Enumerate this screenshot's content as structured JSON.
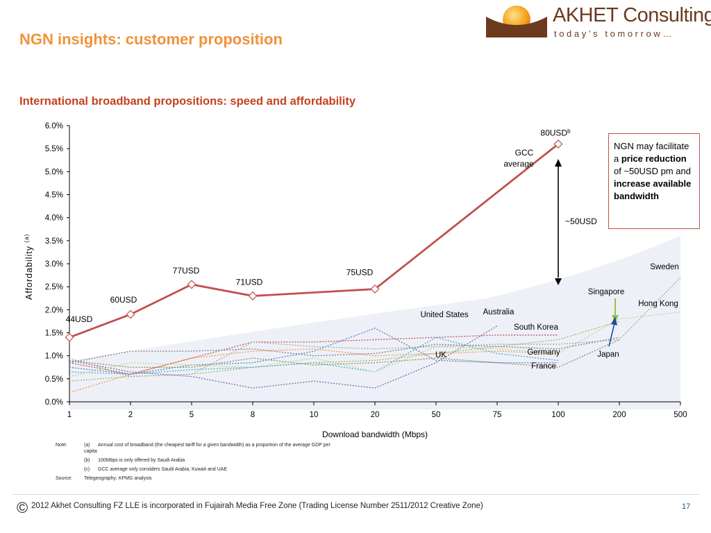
{
  "header": {
    "slide_title": "NGN insights: customer proposition",
    "chart_title": "International broadband propositions: speed and affordability",
    "logo_name": "AKHET Consulting",
    "logo_tagline": "today’s tomorrow…",
    "logo_icon": "sun-over-horizon-icon"
  },
  "colors": {
    "title_orange": "#f0923a",
    "subtitle_red": "#c4421e",
    "gcc_line": "#c0504d",
    "band": "#eef0f8",
    "accent_green": "#8ec641",
    "accent_blue": "#1f4e9a"
  },
  "chart_data": {
    "type": "line",
    "xlabel": "Download bandwidth (Mbps)",
    "ylabel": "Affordability",
    "ylabel_sup": "(a)",
    "categories": [
      "1",
      "2",
      "5",
      "8",
      "10",
      "20",
      "50",
      "75",
      "100",
      "200",
      "500"
    ],
    "ylim": [
      0,
      0.06
    ],
    "yticks": [
      "0.0%",
      "0.5%",
      "1.0%",
      "1.5%",
      "2.0%",
      "2.5%",
      "3.0%",
      "3.5%",
      "4.0%",
      "4.5%",
      "5.0%",
      "5.5%",
      "6.0%"
    ],
    "gcc_series": {
      "name": "GCC average",
      "points": [
        {
          "x": "1",
          "y": 0.014,
          "label": "44USD"
        },
        {
          "x": "2",
          "y": 0.019,
          "label": "60USD"
        },
        {
          "x": "5",
          "y": 0.0255,
          "label": "77USD"
        },
        {
          "x": "8",
          "y": 0.023,
          "label": "71USD"
        },
        {
          "x": "20",
          "y": 0.0245,
          "label": "75USD"
        },
        {
          "x": "100",
          "y": 0.056,
          "label": "80USD",
          "label_sup": "b"
        }
      ]
    },
    "country_series": [
      {
        "name": "United States",
        "color": "#4f81bd",
        "values": [
          0.0075,
          0.006,
          0.008,
          0.0085,
          0.011,
          0.016,
          0.009,
          0.0085,
          0.0085,
          null,
          null
        ]
      },
      {
        "name": "Australia",
        "color": "#8064a2",
        "values": [
          0.009,
          0.0065,
          0.0055,
          0.003,
          0.0045,
          0.003,
          0.0085,
          0.0165,
          null,
          null,
          null
        ]
      },
      {
        "name": "UK",
        "color": "#c0504d",
        "values": [
          0.0085,
          0.006,
          0.0095,
          0.013,
          0.013,
          0.0135,
          0.014,
          0.0145,
          0.0145,
          null,
          null
        ]
      },
      {
        "name": "South Korea",
        "color": "#9bbb59",
        "values": [
          0.0045,
          0.0055,
          0.006,
          0.0075,
          0.0085,
          0.009,
          0.0105,
          0.012,
          0.0135,
          0.0175,
          null
        ]
      },
      {
        "name": "Germany",
        "color": "#f79646",
        "values": [
          0.002,
          0.006,
          0.0095,
          0.011,
          0.0115,
          0.01,
          0.0105,
          0.011,
          0.0105,
          null,
          null
        ]
      },
      {
        "name": "France",
        "color": "#4bacc6",
        "values": [
          0.0065,
          0.006,
          0.007,
          0.0075,
          0.0085,
          0.0065,
          0.014,
          0.0105,
          0.009,
          null,
          null
        ]
      },
      {
        "name": "Japan",
        "color": "#948a54",
        "values": [
          0.009,
          0.0075,
          0.0075,
          0.0095,
          0.008,
          0.0085,
          0.0095,
          0.0085,
          0.0075,
          0.0135,
          null
        ]
      },
      {
        "name": "Sweden",
        "color": "#a6a6a6",
        "values": [
          0.0095,
          0.0055,
          0.006,
          0.013,
          0.012,
          0.0115,
          0.012,
          0.0125,
          0.0125,
          0.0135,
          0.027
        ]
      },
      {
        "name": "Hong Kong",
        "color": "#b9d58e",
        "values": [
          0.0055,
          0.0085,
          0.008,
          0.0075,
          0.0095,
          0.0065,
          0.012,
          0.0115,
          0.0105,
          0.018,
          0.0195
        ]
      },
      {
        "name": "Singapore",
        "color": "#7f7f7f",
        "values": [
          0.0085,
          0.011,
          0.011,
          0.0115,
          0.01,
          0.0105,
          0.0125,
          0.012,
          0.0115,
          0.014,
          null
        ]
      }
    ],
    "country_labels": [
      "United States",
      "Australia",
      "South Korea",
      "UK",
      "Germany",
      "France",
      "Japan",
      "Singapore",
      "Hong Kong",
      "Sweden"
    ],
    "annotations": {
      "gcc_label": "GCC average",
      "gap_label": "~50USD"
    },
    "grid": false
  },
  "callout": {
    "line1": "NGN may facilitate a ",
    "bold1": "price reduction",
    "line2": " of ~50USD pm and ",
    "bold2": "increase available bandwidth"
  },
  "notes": {
    "note_label": "Note:",
    "a_key": "(a)",
    "a_text": "Annual cost of broadband (the cheapest tariff for a given bandwidth) as a proportion of the average GDP per",
    "a_text2": "capita",
    "b_key": "(b)",
    "b_text": "100Mbps is only offered by Saudi Arabia",
    "c_key": "(c)",
    "c_text": "GCC average only considers Saudi Arabia, Kuwait and UAE",
    "source_label": "Source:",
    "source_text": "Telegeography; KPMG analysis"
  },
  "footer": {
    "copyright_symbol": "©",
    "text": "2012 Akhet Consulting FZ LLE is incorporated in Fujairah Media Free Zone (Trading License Number 2511/2012 Creative Zone)",
    "page_number": "17"
  }
}
